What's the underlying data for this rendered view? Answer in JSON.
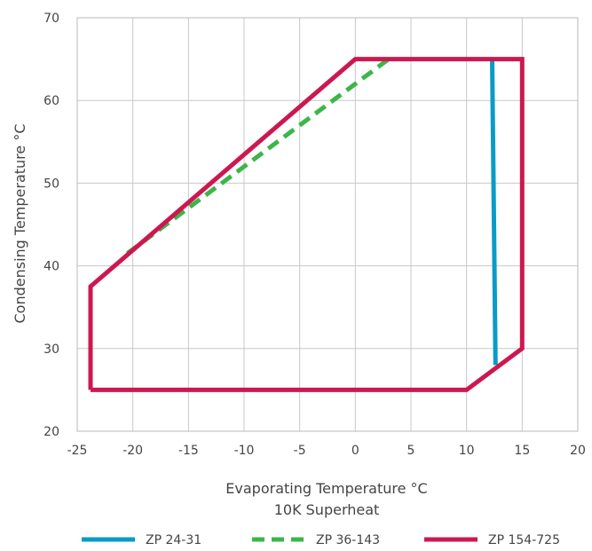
{
  "chart_data": {
    "type": "line",
    "xlabel": "Evaporating Temperature °C",
    "xlabel_sub": "10K Superheat",
    "ylabel": "Condensing Temperature °C",
    "xlim": [
      -25,
      20
    ],
    "ylim": [
      20,
      70
    ],
    "xticks": [
      "-25",
      "-20",
      "-15",
      "-10",
      "-5",
      "0",
      "5",
      "10",
      "15",
      "20"
    ],
    "yticks": [
      "20",
      "30",
      "40",
      "50",
      "60",
      "70"
    ],
    "grid": true,
    "legend_position": "bottom",
    "series": [
      {
        "name": "ZP 24-31",
        "color": "#0a9bc7",
        "style": "solid",
        "points": [
          [
            12.3,
            65
          ],
          [
            12.6,
            28
          ]
        ]
      },
      {
        "name": "ZP 36-143",
        "color": "#3db54a",
        "style": "dashed",
        "points": [
          [
            -20.5,
            41.5
          ],
          [
            3,
            65
          ]
        ]
      },
      {
        "name": "ZP 154-725",
        "color": "#cc1850",
        "style": "solid",
        "points": [
          [
            -23.8,
            25
          ],
          [
            -23.8,
            37.5
          ],
          [
            0,
            65
          ],
          [
            15,
            65
          ],
          [
            15,
            30
          ],
          [
            10,
            25
          ],
          [
            -23.8,
            25
          ]
        ]
      }
    ]
  }
}
